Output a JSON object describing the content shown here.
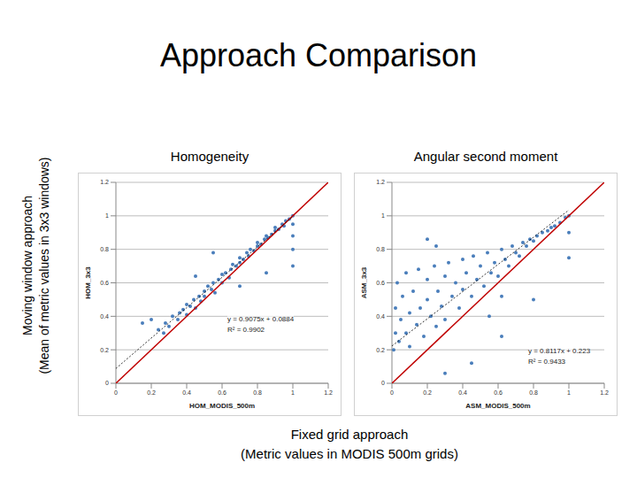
{
  "title": "Approach Comparison",
  "shared_y_label": [
    "Moving window approach",
    "(Mean of metric values in 3x3 windows)"
  ],
  "shared_x_label": [
    "Fixed grid approach",
    "(Metric values in MODIS 500m grids)"
  ],
  "chart_data": [
    {
      "type": "scatter",
      "title": "Homogeneity",
      "x_label": "HOM_MODIS_500m",
      "y_label": "HOM_3x3",
      "color": "#4a7ebb",
      "marker": "circle",
      "xlim": [
        0,
        1.2
      ],
      "ylim": [
        0,
        1.2
      ],
      "xticks": [
        0,
        0.2,
        0.4,
        0.6,
        0.8,
        1,
        1.2
      ],
      "yticks": [
        0,
        0.2,
        0.4,
        0.6,
        0.8,
        1,
        1.2
      ],
      "grid": true,
      "x": [
        0.32,
        0.35,
        0.36,
        0.38,
        0.4,
        0.4,
        0.42,
        0.44,
        0.45,
        0.47,
        0.48,
        0.5,
        0.5,
        0.52,
        0.54,
        0.55,
        0.56,
        0.58,
        0.6,
        0.6,
        0.62,
        0.64,
        0.65,
        0.66,
        0.68,
        0.7,
        0.7,
        0.72,
        0.74,
        0.75,
        0.76,
        0.78,
        0.8,
        0.8,
        0.82,
        0.84,
        0.85,
        0.86,
        0.88,
        0.9,
        0.9,
        0.92,
        0.94,
        0.95,
        0.96,
        0.98,
        1,
        1,
        1,
        1,
        1,
        0.2,
        0.24,
        0.15,
        0.28,
        0.55,
        0.7,
        0.45,
        0.85,
        0.27,
        0.3
      ],
      "values": [
        0.4,
        0.38,
        0.42,
        0.44,
        0.41,
        0.47,
        0.46,
        0.5,
        0.45,
        0.52,
        0.49,
        0.55,
        0.52,
        0.58,
        0.56,
        0.6,
        0.54,
        0.62,
        0.6,
        0.65,
        0.66,
        0.63,
        0.68,
        0.71,
        0.7,
        0.72,
        0.75,
        0.74,
        0.78,
        0.76,
        0.8,
        0.79,
        0.82,
        0.84,
        0.83,
        0.86,
        0.88,
        0.87,
        0.89,
        0.91,
        0.93,
        0.92,
        0.95,
        0.94,
        0.97,
        0.98,
        1,
        0.95,
        0.8,
        0.7,
        0.88,
        0.38,
        0.32,
        0.36,
        0.36,
        0.78,
        0.58,
        0.64,
        0.66,
        0.3,
        0.34
      ],
      "annotations": [
        "y = 0.9075x + 0.0884",
        "R² = 0.9902"
      ],
      "trendline": {
        "x": [
          0,
          1
        ],
        "color": "#000000",
        "line_style": "dotted"
      },
      "reference_line": {
        "x": [
          0,
          1.2
        ],
        "y": [
          0,
          1.2
        ],
        "color": "#c00000",
        "line_style": "solid"
      }
    },
    {
      "type": "scatter",
      "title": "Angular second moment",
      "x_label": "ASM_MODIS_500m",
      "y_label": "ASM_3x3",
      "color": "#4a7ebb",
      "marker": "circle",
      "xlim": [
        0,
        1.2
      ],
      "ylim": [
        0,
        1.2
      ],
      "xticks": [
        0,
        0.2,
        0.4,
        0.6,
        0.8,
        1,
        1.2
      ],
      "yticks": [
        0,
        0.2,
        0.4,
        0.6,
        0.8,
        1,
        1.2
      ],
      "grid": true,
      "x": [
        0.01,
        0.02,
        0.02,
        0.03,
        0.04,
        0.05,
        0.06,
        0.08,
        0.08,
        0.1,
        0.1,
        0.12,
        0.14,
        0.15,
        0.16,
        0.18,
        0.2,
        0.2,
        0.22,
        0.24,
        0.25,
        0.26,
        0.28,
        0.3,
        0.3,
        0.32,
        0.34,
        0.36,
        0.38,
        0.4,
        0.4,
        0.42,
        0.45,
        0.46,
        0.48,
        0.5,
        0.52,
        0.54,
        0.56,
        0.58,
        0.6,
        0.62,
        0.64,
        0.66,
        0.68,
        0.7,
        0.72,
        0.74,
        0.76,
        0.78,
        0.8,
        0.82,
        0.85,
        0.88,
        0.9,
        0.92,
        0.95,
        0.98,
        1,
        1,
        1,
        0.62,
        0.55,
        0.45,
        0.3,
        0.8,
        0.62,
        0.25,
        0.2
      ],
      "values": [
        0.2,
        0.3,
        0.45,
        0.6,
        0.25,
        0.38,
        0.52,
        0.3,
        0.66,
        0.42,
        0.22,
        0.55,
        0.35,
        0.68,
        0.45,
        0.28,
        0.5,
        0.62,
        0.4,
        0.7,
        0.34,
        0.55,
        0.46,
        0.64,
        0.38,
        0.72,
        0.52,
        0.6,
        0.45,
        0.74,
        0.56,
        0.66,
        0.52,
        0.76,
        0.62,
        0.7,
        0.58,
        0.78,
        0.66,
        0.72,
        0.64,
        0.8,
        0.74,
        0.7,
        0.82,
        0.78,
        0.76,
        0.84,
        0.82,
        0.86,
        0.85,
        0.88,
        0.9,
        0.91,
        0.93,
        0.94,
        0.96,
        0.99,
        1,
        0.9,
        0.75,
        0.52,
        0.4,
        0.12,
        0.06,
        0.5,
        0.28,
        0.82,
        0.86
      ],
      "annotations": [
        "y = 0.8117x + 0.223",
        "R² = 0.9433"
      ],
      "trendline": {
        "x": [
          0,
          1
        ],
        "color": "#000000",
        "line_style": "dotted"
      },
      "reference_line": {
        "x": [
          0,
          1.2
        ],
        "y": [
          0,
          1.2
        ],
        "color": "#c00000",
        "line_style": "solid"
      }
    }
  ]
}
